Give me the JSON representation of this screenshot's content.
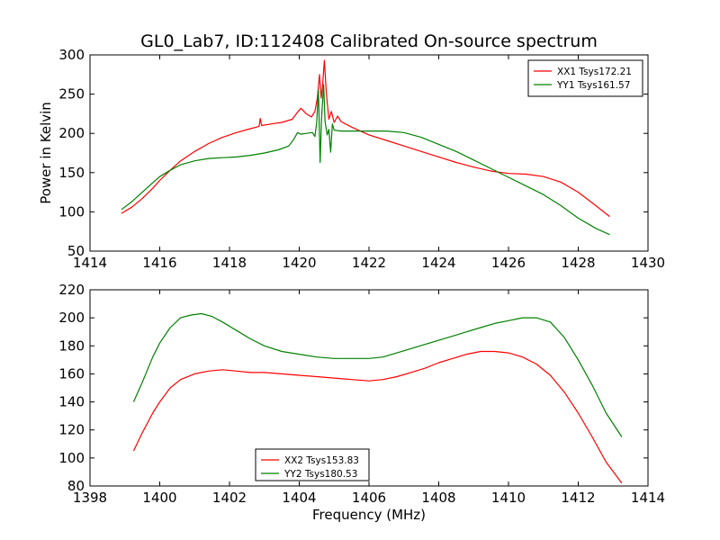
{
  "figure_title": "GL0_Lab7, ID:112408 Calibrated On-source spectrum",
  "chart_data": [
    {
      "type": "line",
      "ylabel": "Power in Kelvin",
      "xlabel": "",
      "xlim": [
        1414,
        1430
      ],
      "ylim": [
        50,
        300
      ],
      "xticks": [
        1414,
        1416,
        1418,
        1420,
        1422,
        1424,
        1426,
        1428,
        1430
      ],
      "yticks": [
        50,
        100,
        150,
        200,
        250,
        300
      ],
      "grid": false,
      "legend": "top-right",
      "series": [
        {
          "name": "XX1 Tsys172.21",
          "color": "#ff0000",
          "points": [
            [
              1414.9,
              98
            ],
            [
              1415.2,
              106
            ],
            [
              1415.5,
              117
            ],
            [
              1415.8,
              130
            ],
            [
              1416.0,
              140
            ],
            [
              1416.3,
              153
            ],
            [
              1416.6,
              165
            ],
            [
              1417.0,
              177
            ],
            [
              1417.4,
              187
            ],
            [
              1417.8,
              195
            ],
            [
              1418.2,
              201
            ],
            [
              1418.6,
              206
            ],
            [
              1418.85,
              209
            ],
            [
              1418.88,
              219
            ],
            [
              1418.92,
              210
            ],
            [
              1419.2,
              212
            ],
            [
              1419.5,
              214
            ],
            [
              1419.8,
              218
            ],
            [
              1419.95,
              227
            ],
            [
              1420.05,
              232
            ],
            [
              1420.2,
              225
            ],
            [
              1420.35,
              221
            ],
            [
              1420.45,
              228
            ],
            [
              1420.52,
              245
            ],
            [
              1420.58,
              275
            ],
            [
              1420.63,
              245
            ],
            [
              1420.67,
              262
            ],
            [
              1420.72,
              293
            ],
            [
              1420.78,
              250
            ],
            [
              1420.85,
              218
            ],
            [
              1420.92,
              228
            ],
            [
              1421.0,
              214
            ],
            [
              1421.1,
              222
            ],
            [
              1421.2,
              215
            ],
            [
              1421.5,
              208
            ],
            [
              1422.0,
              198
            ],
            [
              1422.5,
              191
            ],
            [
              1423.0,
              184
            ],
            [
              1423.5,
              177
            ],
            [
              1424.0,
              170
            ],
            [
              1424.5,
              163
            ],
            [
              1425.0,
              157
            ],
            [
              1425.5,
              152
            ],
            [
              1426.0,
              149
            ],
            [
              1426.5,
              148
            ],
            [
              1427.0,
              145
            ],
            [
              1427.5,
              138
            ],
            [
              1428.0,
              125
            ],
            [
              1428.5,
              108
            ],
            [
              1428.9,
              94
            ]
          ]
        },
        {
          "name": "YY1 Tsys161.57",
          "color": "#008000",
          "points": [
            [
              1414.9,
              103
            ],
            [
              1415.2,
              113
            ],
            [
              1415.5,
              125
            ],
            [
              1415.8,
              137
            ],
            [
              1416.0,
              145
            ],
            [
              1416.3,
              153
            ],
            [
              1416.6,
              160
            ],
            [
              1417.0,
              165
            ],
            [
              1417.4,
              168
            ],
            [
              1417.8,
              169
            ],
            [
              1418.2,
              170
            ],
            [
              1418.6,
              172
            ],
            [
              1419.0,
              175
            ],
            [
              1419.4,
              179
            ],
            [
              1419.7,
              184
            ],
            [
              1419.85,
              193
            ],
            [
              1419.95,
              201
            ],
            [
              1420.05,
              199
            ],
            [
              1420.2,
              200
            ],
            [
              1420.38,
              201
            ],
            [
              1420.45,
              196
            ],
            [
              1420.5,
              214
            ],
            [
              1420.55,
              255
            ],
            [
              1420.6,
              163
            ],
            [
              1420.64,
              220
            ],
            [
              1420.7,
              262
            ],
            [
              1420.74,
              215
            ],
            [
              1420.8,
              198
            ],
            [
              1420.85,
              205
            ],
            [
              1420.9,
              176
            ],
            [
              1420.95,
              212
            ],
            [
              1421.0,
              204
            ],
            [
              1421.2,
              203
            ],
            [
              1421.5,
              203
            ],
            [
              1422.0,
              203
            ],
            [
              1422.5,
              203
            ],
            [
              1423.0,
              201
            ],
            [
              1423.5,
              195
            ],
            [
              1424.0,
              186
            ],
            [
              1424.5,
              177
            ],
            [
              1425.0,
              166
            ],
            [
              1425.5,
              155
            ],
            [
              1426.0,
              144
            ],
            [
              1426.5,
              133
            ],
            [
              1427.0,
              122
            ],
            [
              1427.5,
              108
            ],
            [
              1428.0,
              92
            ],
            [
              1428.5,
              79
            ],
            [
              1428.9,
              71
            ]
          ]
        }
      ]
    },
    {
      "type": "line",
      "xlabel": "Frequency (MHz)",
      "ylabel": "",
      "xlim": [
        1398,
        1414
      ],
      "ylim": [
        80,
        220
      ],
      "xticks": [
        1398,
        1400,
        1402,
        1404,
        1406,
        1408,
        1410,
        1412,
        1414
      ],
      "yticks": [
        80,
        100,
        120,
        140,
        160,
        180,
        200,
        220
      ],
      "grid": false,
      "legend": "bottom-center",
      "series": [
        {
          "name": "XX2 Tsys153.83",
          "color": "#ff0000",
          "points": [
            [
              1399.25,
              105
            ],
            [
              1399.5,
              118
            ],
            [
              1399.8,
              132
            ],
            [
              1400.0,
              140
            ],
            [
              1400.3,
              150
            ],
            [
              1400.6,
              156
            ],
            [
              1401.0,
              160
            ],
            [
              1401.4,
              162
            ],
            [
              1401.8,
              163
            ],
            [
              1402.2,
              162
            ],
            [
              1402.6,
              161
            ],
            [
              1403.0,
              161
            ],
            [
              1403.5,
              160
            ],
            [
              1404.0,
              159
            ],
            [
              1404.5,
              158
            ],
            [
              1405.0,
              157
            ],
            [
              1405.5,
              156
            ],
            [
              1406.0,
              155
            ],
            [
              1406.4,
              156
            ],
            [
              1406.8,
              158
            ],
            [
              1407.2,
              161
            ],
            [
              1407.6,
              164
            ],
            [
              1408.0,
              168
            ],
            [
              1408.4,
              171
            ],
            [
              1408.8,
              174
            ],
            [
              1409.2,
              176
            ],
            [
              1409.6,
              176
            ],
            [
              1410.0,
              175
            ],
            [
              1410.4,
              172
            ],
            [
              1410.8,
              167
            ],
            [
              1411.2,
              159
            ],
            [
              1411.6,
              147
            ],
            [
              1412.0,
              132
            ],
            [
              1412.4,
              115
            ],
            [
              1412.8,
              97
            ],
            [
              1413.25,
              82
            ]
          ]
        },
        {
          "name": "YY2 Tsys180.53",
          "color": "#008000",
          "points": [
            [
              1399.25,
              140
            ],
            [
              1399.5,
              154
            ],
            [
              1399.8,
              172
            ],
            [
              1400.0,
              182
            ],
            [
              1400.3,
              193
            ],
            [
              1400.6,
              200
            ],
            [
              1400.9,
              202
            ],
            [
              1401.2,
              203
            ],
            [
              1401.5,
              201
            ],
            [
              1401.8,
              197
            ],
            [
              1402.2,
              191
            ],
            [
              1402.6,
              185
            ],
            [
              1403.0,
              180
            ],
            [
              1403.5,
              176
            ],
            [
              1404.0,
              174
            ],
            [
              1404.5,
              172
            ],
            [
              1405.0,
              171
            ],
            [
              1405.5,
              171
            ],
            [
              1406.0,
              171
            ],
            [
              1406.4,
              172
            ],
            [
              1406.8,
              175
            ],
            [
              1407.2,
              178
            ],
            [
              1407.6,
              181
            ],
            [
              1408.0,
              184
            ],
            [
              1408.4,
              187
            ],
            [
              1408.8,
              190
            ],
            [
              1409.2,
              193
            ],
            [
              1409.6,
              196
            ],
            [
              1410.0,
              198
            ],
            [
              1410.4,
              200
            ],
            [
              1410.8,
              200
            ],
            [
              1411.2,
              197
            ],
            [
              1411.6,
              186
            ],
            [
              1412.0,
              170
            ],
            [
              1412.4,
              152
            ],
            [
              1412.8,
              132
            ],
            [
              1413.25,
              115
            ]
          ]
        }
      ]
    }
  ]
}
